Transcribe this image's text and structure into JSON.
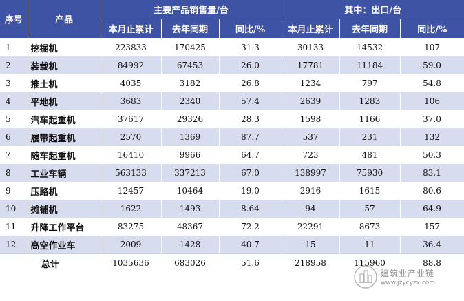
{
  "table": {
    "headers": {
      "idx": "序号",
      "product": "产品",
      "group_sales": "主要产品销售量/台",
      "group_export": "其中：出口/台",
      "sub": [
        "本月止累计",
        "去年同期",
        "同比/%",
        "本月止累计",
        "去年同期",
        "同比/%"
      ]
    },
    "rows": [
      {
        "idx": "1",
        "name": "挖掘机",
        "sales_ytd": "223833",
        "sales_prev": "170425",
        "sales_yoy": "31.3",
        "export_ytd": "30133",
        "export_prev": "14532",
        "export_yoy": "107"
      },
      {
        "idx": "2",
        "name": "装载机",
        "sales_ytd": "84992",
        "sales_prev": "67453",
        "sales_yoy": "26.0",
        "export_ytd": "17781",
        "export_prev": "11184",
        "export_yoy": "59.0"
      },
      {
        "idx": "3",
        "name": "推土机",
        "sales_ytd": "4035",
        "sales_prev": "3182",
        "sales_yoy": "26.8",
        "export_ytd": "1234",
        "export_prev": "797",
        "export_yoy": "54.8"
      },
      {
        "idx": "4",
        "name": "平地机",
        "sales_ytd": "3683",
        "sales_prev": "2340",
        "sales_yoy": "57.4",
        "export_ytd": "2639",
        "export_prev": "1283",
        "export_yoy": "106"
      },
      {
        "idx": "5",
        "name": "汽车起重机",
        "sales_ytd": "37617",
        "sales_prev": "29326",
        "sales_yoy": "28.3",
        "export_ytd": "1598",
        "export_prev": "1166",
        "export_yoy": "37.0"
      },
      {
        "idx": "6",
        "name": "履带起重机",
        "sales_ytd": "2570",
        "sales_prev": "1369",
        "sales_yoy": "87.7",
        "export_ytd": "537",
        "export_prev": "231",
        "export_yoy": "132"
      },
      {
        "idx": "7",
        "name": "随车起重机",
        "sales_ytd": "16410",
        "sales_prev": "9966",
        "sales_yoy": "64.7",
        "export_ytd": "723",
        "export_prev": "481",
        "export_yoy": "50.3"
      },
      {
        "idx": "8",
        "name": "工业车辆",
        "sales_ytd": "563133",
        "sales_prev": "337213",
        "sales_yoy": "67.0",
        "export_ytd": "138997",
        "export_prev": "75930",
        "export_yoy": "83.1"
      },
      {
        "idx": "9",
        "name": "压路机",
        "sales_ytd": "12457",
        "sales_prev": "10464",
        "sales_yoy": "19.0",
        "export_ytd": "2916",
        "export_prev": "1615",
        "export_yoy": "80.6"
      },
      {
        "idx": "10",
        "name": "摊铺机",
        "sales_ytd": "1622",
        "sales_prev": "1493",
        "sales_yoy": "8.64",
        "export_ytd": "94",
        "export_prev": "57",
        "export_yoy": "64.9"
      },
      {
        "idx": "11",
        "name": "升降工作平台",
        "sales_ytd": "83275",
        "sales_prev": "48367",
        "sales_yoy": "72.2",
        "export_ytd": "22291",
        "export_prev": "8673",
        "export_yoy": "157"
      },
      {
        "idx": "12",
        "name": "高空作业车",
        "sales_ytd": "2009",
        "sales_prev": "1428",
        "sales_yoy": "40.7",
        "export_ytd": "15",
        "export_prev": "11",
        "export_yoy": "36.4"
      }
    ],
    "total": {
      "label": "总计",
      "sales_ytd": "1035636",
      "sales_prev": "683026",
      "sales_yoy": "51.6",
      "export_ytd": "218958",
      "export_prev": "115960",
      "export_yoy": "88.8"
    }
  },
  "watermark": {
    "title": "建筑业产业链",
    "url": "www.jzycyzx.com"
  },
  "colors": {
    "header_bg": "#3f53a4",
    "stripe": "#d8dcef"
  }
}
